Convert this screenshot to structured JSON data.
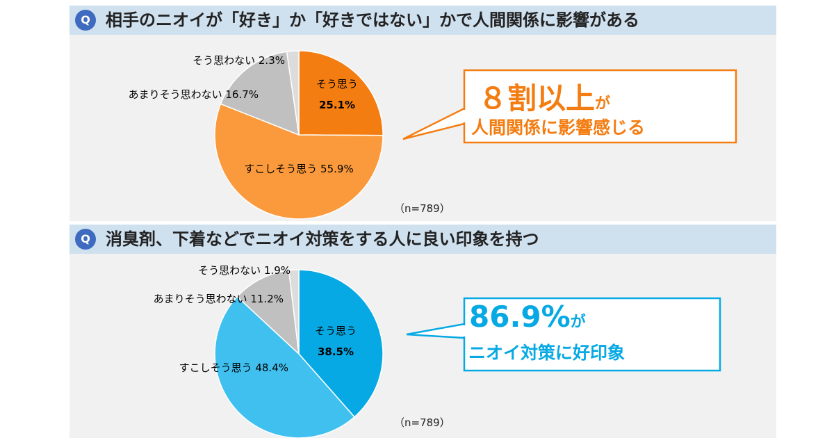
{
  "colors": {
    "qbar": "#cfe0ef",
    "badge": "#3e6bbf",
    "orange_dark": "#f47d12",
    "orange_light": "#fb9a3c",
    "gray": "#c0c0c0",
    "gray_light": "#dcdcdc",
    "blue_dark": "#06a9e4",
    "blue_light": "#3fc0ef"
  },
  "questions": [
    {
      "badge": "Q",
      "text": "相手のニオイが「好き」か「好きではない」かで人間関係に影響がある",
      "n_label": "（n=789）",
      "callout": {
        "big": "８割以上",
        "particle": "が",
        "sub": "人間関係に影響感じる"
      }
    },
    {
      "badge": "Q",
      "text": "消臭剤、下着などでニオイ対策をする人に良い印象を持つ",
      "n_label": "（n=789）",
      "callout": {
        "big": "86.9%",
        "particle": "が",
        "sub": "ニオイ対策に好印象"
      }
    }
  ],
  "chart_data": [
    {
      "type": "pie",
      "title": "相手のニオイが「好き」か「好きではない」かで人間関係に影響がある",
      "categories": [
        "そう思う",
        "すこしそう思う",
        "あまりそう思わない",
        "そう思わない"
      ],
      "values": [
        25.1,
        55.9,
        16.7,
        2.3
      ],
      "labels": [
        "そう思う 25.1%",
        "すこしそう思う 55.9%",
        "あまりそう思わない 16.7%",
        "そう思わない 2.3%"
      ],
      "colors": [
        "#f47d12",
        "#fb9a3c",
        "#c0c0c0",
        "#dcdcdc"
      ]
    },
    {
      "type": "pie",
      "title": "消臭剤、下着などでニオイ対策をする人に良い印象を持つ",
      "categories": [
        "そう思う",
        "すこしそう思う",
        "あまりそう思わない",
        "そう思わない"
      ],
      "values": [
        38.5,
        48.4,
        11.2,
        1.9
      ],
      "labels": [
        "そう思う 38.5%",
        "すこしそう思う 48.4%",
        "あまりそう思わない 11.2%",
        "そう思わない 1.9%"
      ],
      "colors": [
        "#06a9e4",
        "#3fc0ef",
        "#c0c0c0",
        "#dcdcdc"
      ]
    }
  ]
}
